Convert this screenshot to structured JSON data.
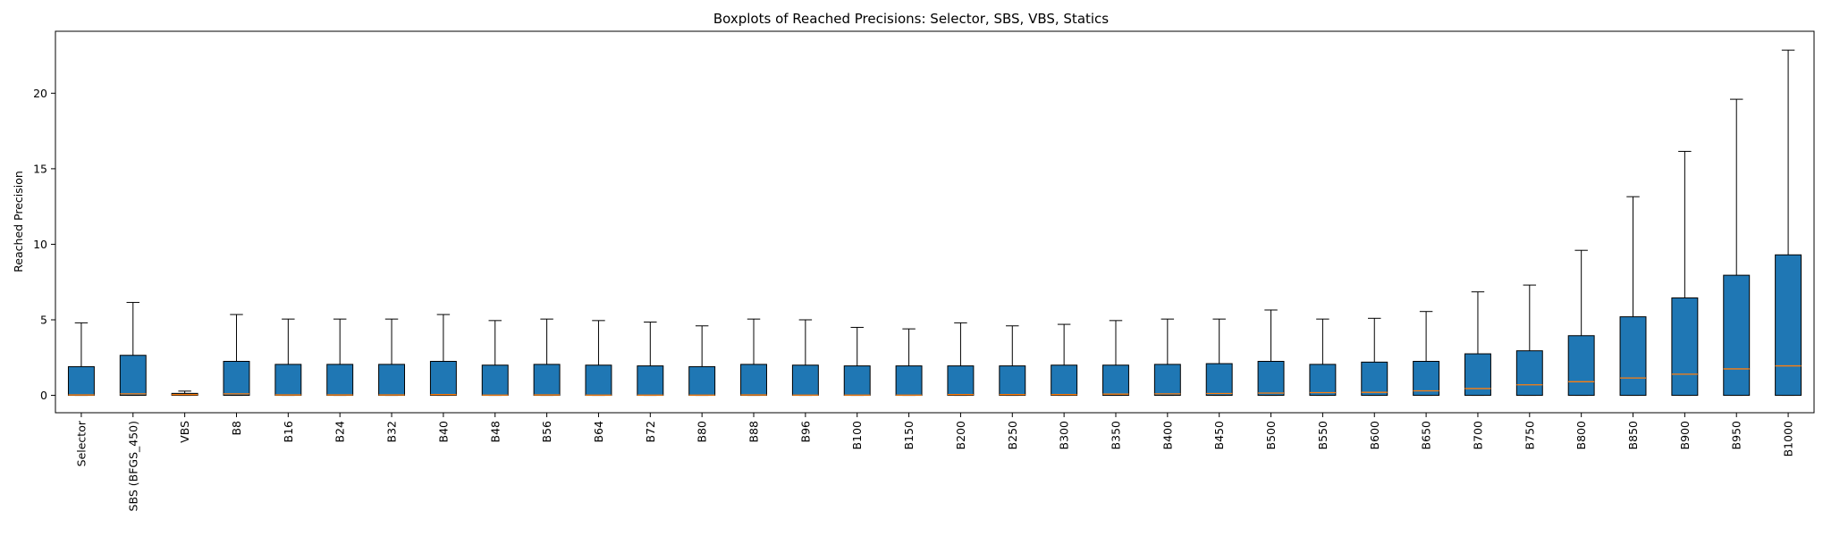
{
  "chart_data": {
    "type": "box",
    "title": "Boxplots of Reached Precisions: Selector, SBS, VBS, Statics",
    "xlabel": "",
    "ylabel": "Reached Precision",
    "ylim": [
      -1.15,
      24.1
    ],
    "yticks": [
      0,
      5,
      10,
      15,
      20
    ],
    "grid": false,
    "colors": {
      "box": "#1f77b4",
      "median": "#ff7f0e",
      "line": "#000000"
    },
    "categories": [
      "Selector",
      "SBS (BFGS_450)",
      "VBS",
      "B8",
      "B16",
      "B24",
      "B32",
      "B40",
      "B48",
      "B56",
      "B64",
      "B72",
      "B80",
      "B88",
      "B96",
      "B100",
      "B150",
      "B200",
      "B250",
      "B300",
      "B350",
      "B400",
      "B450",
      "B500",
      "B550",
      "B600",
      "B650",
      "B700",
      "B750",
      "B800",
      "B850",
      "B900",
      "B950",
      "B1000"
    ],
    "boxes": [
      {
        "min": 0.0,
        "q1": 0.0,
        "median": 0.03,
        "q3": 1.9,
        "max": 4.8
      },
      {
        "min": 0.0,
        "q1": 0.0,
        "median": 0.1,
        "q3": 2.65,
        "max": 6.15
      },
      {
        "min": 0.0,
        "q1": 0.0,
        "median": 0.05,
        "q3": 0.13,
        "max": 0.28
      },
      {
        "min": 0.0,
        "q1": 0.0,
        "median": 0.1,
        "q3": 2.25,
        "max": 5.35
      },
      {
        "min": 0.0,
        "q1": 0.0,
        "median": 0.03,
        "q3": 2.05,
        "max": 5.05
      },
      {
        "min": 0.0,
        "q1": 0.0,
        "median": 0.03,
        "q3": 2.05,
        "max": 5.05
      },
      {
        "min": 0.0,
        "q1": 0.0,
        "median": 0.03,
        "q3": 2.05,
        "max": 5.05
      },
      {
        "min": 0.0,
        "q1": 0.0,
        "median": 0.05,
        "q3": 2.25,
        "max": 5.35
      },
      {
        "min": 0.0,
        "q1": 0.0,
        "median": 0.02,
        "q3": 2.0,
        "max": 4.95
      },
      {
        "min": 0.0,
        "q1": 0.0,
        "median": 0.03,
        "q3": 2.05,
        "max": 5.05
      },
      {
        "min": 0.0,
        "q1": 0.0,
        "median": 0.02,
        "q3": 2.0,
        "max": 4.95
      },
      {
        "min": 0.0,
        "q1": 0.0,
        "median": 0.02,
        "q3": 1.95,
        "max": 4.85
      },
      {
        "min": 0.0,
        "q1": 0.0,
        "median": 0.02,
        "q3": 1.9,
        "max": 4.6
      },
      {
        "min": 0.0,
        "q1": 0.0,
        "median": 0.03,
        "q3": 2.05,
        "max": 5.05
      },
      {
        "min": 0.0,
        "q1": 0.0,
        "median": 0.02,
        "q3": 2.0,
        "max": 5.0
      },
      {
        "min": 0.0,
        "q1": 0.0,
        "median": 0.02,
        "q3": 1.95,
        "max": 4.5
      },
      {
        "min": 0.0,
        "q1": 0.0,
        "median": 0.02,
        "q3": 1.95,
        "max": 4.4
      },
      {
        "min": 0.0,
        "q1": 0.0,
        "median": 0.05,
        "q3": 1.95,
        "max": 4.8
      },
      {
        "min": 0.0,
        "q1": 0.0,
        "median": 0.05,
        "q3": 1.95,
        "max": 4.6
      },
      {
        "min": 0.0,
        "q1": 0.0,
        "median": 0.05,
        "q3": 2.0,
        "max": 4.7
      },
      {
        "min": 0.0,
        "q1": 0.0,
        "median": 0.08,
        "q3": 2.0,
        "max": 4.95
      },
      {
        "min": 0.0,
        "q1": 0.0,
        "median": 0.1,
        "q3": 2.05,
        "max": 5.05
      },
      {
        "min": 0.0,
        "q1": 0.0,
        "median": 0.12,
        "q3": 2.1,
        "max": 5.05
      },
      {
        "min": 0.0,
        "q1": 0.0,
        "median": 0.15,
        "q3": 2.25,
        "max": 5.65
      },
      {
        "min": 0.0,
        "q1": 0.0,
        "median": 0.18,
        "q3": 2.05,
        "max": 5.05
      },
      {
        "min": 0.0,
        "q1": 0.0,
        "median": 0.2,
        "q3": 2.2,
        "max": 5.1
      },
      {
        "min": 0.0,
        "q1": 0.0,
        "median": 0.3,
        "q3": 2.25,
        "max": 5.55
      },
      {
        "min": 0.0,
        "q1": 0.0,
        "median": 0.45,
        "q3": 2.75,
        "max": 6.85
      },
      {
        "min": 0.0,
        "q1": 0.0,
        "median": 0.7,
        "q3": 2.95,
        "max": 7.3
      },
      {
        "min": 0.0,
        "q1": 0.0,
        "median": 0.9,
        "q3": 3.95,
        "max": 9.6
      },
      {
        "min": 0.0,
        "q1": 0.0,
        "median": 1.15,
        "q3": 5.2,
        "max": 13.15
      },
      {
        "min": 0.0,
        "q1": 0.0,
        "median": 1.4,
        "q3": 6.45,
        "max": 16.15
      },
      {
        "min": 0.0,
        "q1": 0.0,
        "median": 1.75,
        "q3": 7.95,
        "max": 19.6
      },
      {
        "min": 0.0,
        "q1": 0.0,
        "median": 1.95,
        "q3": 9.3,
        "max": 22.85
      }
    ]
  }
}
